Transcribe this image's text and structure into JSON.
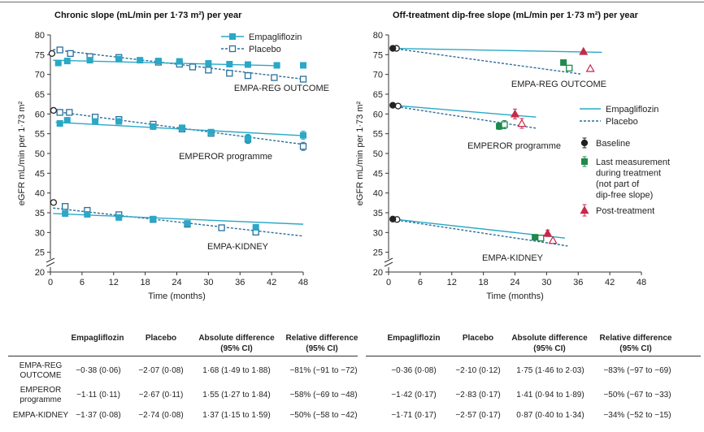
{
  "chart_data": [
    {
      "type": "line",
      "title": "Chronic slope (mL/min per 1·73 m²) per year",
      "xlabel": "Time (months)",
      "ylabel": "eGFR mL/min per 1·73 m²",
      "xlim": [
        0,
        48
      ],
      "ylim": [
        20,
        80
      ],
      "xticks": [
        "0",
        "6",
        "12",
        "18",
        "24",
        "30",
        "36",
        "42",
        "48"
      ],
      "yticks": [
        "20",
        "25",
        "30",
        "35",
        "40",
        "45",
        "50",
        "55",
        "60",
        "65",
        "70",
        "75",
        "80"
      ],
      "legend": {
        "position": "top-right",
        "entries": [
          "Empagliflozin",
          "Placebo"
        ]
      },
      "colors": {
        "empagliflozin": "#2aa8c6",
        "placebo": "#2a6f9c"
      },
      "groups": [
        {
          "label": "EMPA-REG OUTCOME",
          "baseline": {
            "x": 0.3,
            "y": 75.3
          },
          "empa_line": [
            [
              0.5,
              73.6
            ],
            [
              43.5,
              72.2
            ]
          ],
          "placebo_line": [
            [
              0.5,
              76.3
            ],
            [
              47.5,
              68.9
            ]
          ],
          "empa_points": [
            [
              1.5,
              72.9
            ],
            [
              3.2,
              73.4
            ],
            [
              7.5,
              73.6
            ],
            [
              13,
              73.9
            ],
            [
              17,
              73.6
            ],
            [
              20.5,
              73.4
            ],
            [
              24.5,
              73.3
            ],
            [
              30,
              72.8
            ],
            [
              34,
              72.6
            ],
            [
              37.5,
              72.5
            ],
            [
              43,
              72.3
            ],
            [
              48,
              72.3
            ]
          ],
          "placebo_points": [
            [
              1.8,
              76.2
            ],
            [
              3.8,
              75.3
            ],
            [
              7.5,
              74.5
            ],
            [
              13,
              74.3
            ],
            [
              20.5,
              73.1
            ],
            [
              24.5,
              72.6
            ],
            [
              27,
              71.9
            ],
            [
              30,
              71.1
            ],
            [
              34,
              70.3
            ],
            [
              37.5,
              69.7
            ],
            [
              42.5,
              69.2
            ],
            [
              48,
              68.8
            ]
          ]
        },
        {
          "label": "EMPEROR programme",
          "baseline": {
            "x": 0.6,
            "y": 60.9
          },
          "empa_line": [
            [
              1,
              57.9
            ],
            [
              48,
              54.5
            ]
          ],
          "placebo_line": [
            [
              1,
              60.6
            ],
            [
              48,
              52.3
            ]
          ],
          "empa_points": [
            [
              1.8,
              57.6
            ],
            [
              3.2,
              58.4
            ],
            [
              8.5,
              58.1
            ],
            [
              13,
              58.1
            ],
            [
              19.5,
              56.8
            ],
            [
              25,
              56.5
            ],
            [
              30.5,
              55.4
            ],
            [
              37.5,
              53.8
            ],
            [
              48,
              54.6
            ]
          ],
          "placebo_points": [
            [
              1.8,
              60.4
            ],
            [
              3.6,
              60.4
            ],
            [
              8.5,
              59.2
            ],
            [
              13,
              58.6
            ],
            [
              19.5,
              57.4
            ],
            [
              25,
              56.2
            ],
            [
              30.5,
              55.1
            ],
            [
              37.5,
              53.6
            ],
            [
              48,
              51.8
            ]
          ]
        },
        {
          "label": "EMPA-KIDNEY",
          "baseline": {
            "x": 0.6,
            "y": 37.6
          },
          "empa_line": [
            [
              0.5,
              34.8
            ],
            [
              48,
              32.1
            ]
          ],
          "placebo_line": [
            [
              0.5,
              36.2
            ],
            [
              48,
              29.1
            ]
          ],
          "empa_points": [
            [
              2.8,
              34.8
            ],
            [
              7,
              34.6
            ],
            [
              13,
              33.8
            ],
            [
              19.5,
              33.4
            ],
            [
              26,
              32.3
            ],
            [
              39,
              31.3
            ]
          ],
          "placebo_points": [
            [
              2.8,
              36.6
            ],
            [
              7,
              35.6
            ],
            [
              13,
              34.5
            ],
            [
              19.5,
              33.3
            ],
            [
              26,
              32.1
            ],
            [
              32.5,
              31.2
            ],
            [
              39,
              30.1
            ]
          ]
        }
      ]
    },
    {
      "type": "line",
      "title": "Off-treatment dip-free slope (mL/min per 1·73 m²) per year",
      "xlabel": "Time (months)",
      "ylabel": "eGFR mL/min per 1·73 m²",
      "xlim": [
        0,
        48
      ],
      "ylim": [
        20,
        80
      ],
      "xticks": [
        "0",
        "6",
        "12",
        "18",
        "24",
        "30",
        "36",
        "42",
        "48"
      ],
      "yticks": [
        "20",
        "25",
        "30",
        "35",
        "40",
        "45",
        "50",
        "55",
        "60",
        "65",
        "70",
        "75",
        "80"
      ],
      "legend": {
        "position": "right",
        "entries": [
          "Empagliflozin",
          "Placebo",
          "Baseline",
          "Last measurement during treatment (not part of dip-free slope)",
          "Post-treatment"
        ]
      },
      "colors": {
        "empagliflozin": "#2aa8c6",
        "placebo": "#2a6f9c",
        "last_measurement": "#1e8a4c",
        "post_treatment": "#c8284a",
        "baseline": "#222222"
      },
      "groups": [
        {
          "label": "EMPA-REG OUTCOME",
          "baseline": {
            "x": 0.8,
            "y": 76.6
          },
          "baseline_placebo": {
            "x": 1.5,
            "y": 76.6
          },
          "empa_line": [
            [
              0.8,
              76.6
            ],
            [
              40.5,
              75.6
            ]
          ],
          "placebo_line": [
            [
              0.8,
              76.6
            ],
            [
              36.5,
              70.1
            ]
          ],
          "last_empa": {
            "x": 33.2,
            "y": 73.0
          },
          "last_placebo": {
            "x": 34.3,
            "y": 71.6
          },
          "post_empa": {
            "x": 37,
            "y": 75.8
          },
          "post_placebo": {
            "x": 38.3,
            "y": 71.5
          }
        },
        {
          "label": "EMPEROR programme",
          "baseline": {
            "x": 0.8,
            "y": 62.2
          },
          "baseline_placebo": {
            "x": 1.8,
            "y": 62.0
          },
          "empa_line": [
            [
              0.8,
              62.2
            ],
            [
              28,
              59.2
            ]
          ],
          "placebo_line": [
            [
              0.8,
              62.0
            ],
            [
              28,
              56.4
            ]
          ],
          "last_empa": {
            "x": 21,
            "y": 56.9
          },
          "last_placebo": {
            "x": 22,
            "y": 57.3
          },
          "post_empa": {
            "x": 24,
            "y": 60.0
          },
          "post_placebo": {
            "x": 25.3,
            "y": 57.6
          }
        },
        {
          "label": "EMPA-KIDNEY",
          "baseline": {
            "x": 0.8,
            "y": 33.4
          },
          "baseline_placebo": {
            "x": 1.6,
            "y": 33.3
          },
          "empa_line": [
            [
              0.8,
              33.4
            ],
            [
              33.5,
              28.6
            ]
          ],
          "placebo_line": [
            [
              0.8,
              33.3
            ],
            [
              34,
              26.6
            ]
          ],
          "last_empa": {
            "x": 27.8,
            "y": 28.8
          },
          "last_placebo": {
            "x": 28.9,
            "y": 28.6
          },
          "post_empa": {
            "x": 30.2,
            "y": 29.8
          },
          "post_placebo": {
            "x": 31.2,
            "y": 28.0
          }
        }
      ]
    }
  ],
  "tables": {
    "left": {
      "headers": {
        "empa": "Empagliflozin",
        "placebo": "Placebo",
        "absolute": "Absolute difference (95% CI)",
        "relative": "Relative difference (95% CI)"
      },
      "rows": [
        {
          "label": "EMPA-REG OUTCOME",
          "empa": "−0·38 (0·06)",
          "placebo": "−2·07 (0·08)",
          "absolute": "1·68 (1·49 to 1·88)",
          "relative": "−81% (−91 to −72)"
        },
        {
          "label": "EMPEROR programme",
          "empa": "−1·11 (0·11)",
          "placebo": "−2·67 (0·11)",
          "absolute": "1·55 (1·27 to 1·84)",
          "relative": "−58% (−69 to −48)"
        },
        {
          "label": "EMPA-KIDNEY",
          "empa": "−1·37 (0·08)",
          "placebo": "−2·74 (0·08)",
          "absolute": "1·37 (1·15 to 1·59)",
          "relative": "−50% (−58 to −42)"
        }
      ]
    },
    "right": {
      "headers": {
        "empa": "Empagliflozin",
        "placebo": "Placebo",
        "absolute": "Absolute difference (95% CI)",
        "relative": "Relative difference (95% CI)"
      },
      "rows": [
        {
          "empa": "−0·36 (0·08)",
          "placebo": "−2·10 (0·12)",
          "absolute": "1·75 (1·46 to 2·03)",
          "relative": "−83% (−97 to −69)"
        },
        {
          "empa": "−1·42 (0·17)",
          "placebo": "−2·83 (0·17)",
          "absolute": "1·41 (0·94 to 1·89)",
          "relative": "−50% (−67 to −33)"
        },
        {
          "empa": "−1·71 (0·17)",
          "placebo": "−2·57 (0·17)",
          "absolute": "0·87 (0·40 to 1·34)",
          "relative": "−34% (−52 to −15)"
        }
      ]
    }
  }
}
